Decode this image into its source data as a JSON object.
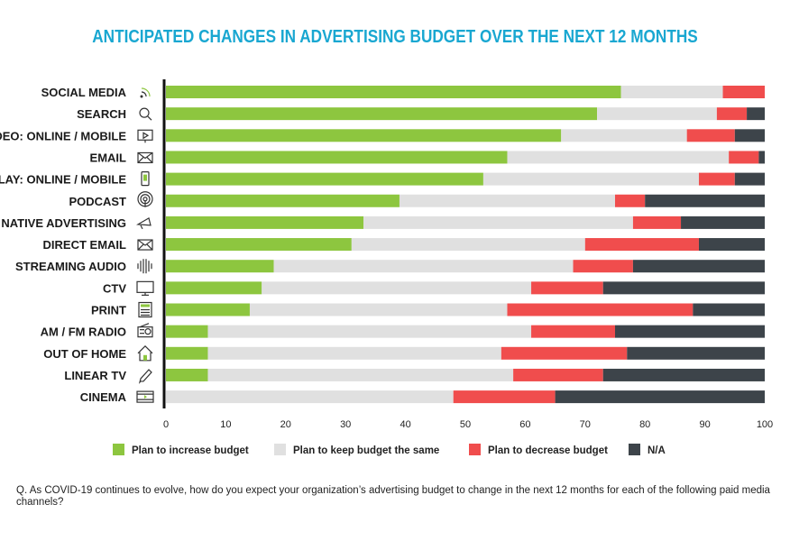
{
  "chart_data": {
    "type": "bar",
    "orientation": "horizontal",
    "stacked": true,
    "title": "ANTICIPATED CHANGES IN ADVERTISING BUDGET OVER THE NEXT 12 MONTHS",
    "categories": [
      "SOCIAL MEDIA",
      "SEARCH",
      "VIDEO: ONLINE / MOBILE",
      "EMAIL",
      "DISPLAY: ONLINE / MOBILE",
      "PODCAST",
      "NATIVE ADVERTISING",
      "DIRECT EMAIL",
      "STREAMING AUDIO",
      "CTV",
      "PRINT",
      "AM / FM RADIO",
      "OUT OF HOME",
      "LINEAR TV",
      "CINEMA"
    ],
    "icons": [
      "wifi-icon",
      "search-icon",
      "video-icon",
      "email-icon",
      "mobile-icon",
      "podcast-icon",
      "megaphone-icon",
      "email-icon",
      "audio-wave-icon",
      "tv-icon",
      "newspaper-icon",
      "radio-icon",
      "house-icon",
      "pencil-icon",
      "film-icon"
    ],
    "series": [
      {
        "name": "Plan to increase budget",
        "color": "#8dc63f",
        "values": [
          76,
          72,
          66,
          57,
          53,
          39,
          33,
          31,
          18,
          16,
          14,
          7,
          7,
          7,
          0
        ]
      },
      {
        "name": "Plan to keep budget the same",
        "color": "#e0e0e0",
        "values": [
          17,
          20,
          21,
          37,
          36,
          36,
          45,
          39,
          50,
          45,
          43,
          54,
          49,
          51,
          48
        ]
      },
      {
        "name": "Plan to decrease budget",
        "color": "#f04d4d",
        "values": [
          7,
          5,
          8,
          5,
          6,
          5,
          8,
          19,
          10,
          12,
          31,
          14,
          21,
          15,
          17
        ]
      },
      {
        "name": "N/A",
        "color": "#3d444a",
        "values": [
          1,
          4,
          6,
          2,
          6,
          21,
          15,
          12,
          23,
          28,
          13,
          26,
          24,
          28,
          36
        ]
      }
    ],
    "xlim": [
      0,
      100
    ],
    "xticks": [
      0,
      10,
      20,
      30,
      40,
      50,
      60,
      70,
      80,
      90,
      100
    ],
    "grid": false,
    "legend_position": "bottom"
  },
  "footnote": "Q. As COVID-19 continues to evolve, how do you expect your organization’s advertising budget to change in the next 12 months for each of the following paid media channels?"
}
